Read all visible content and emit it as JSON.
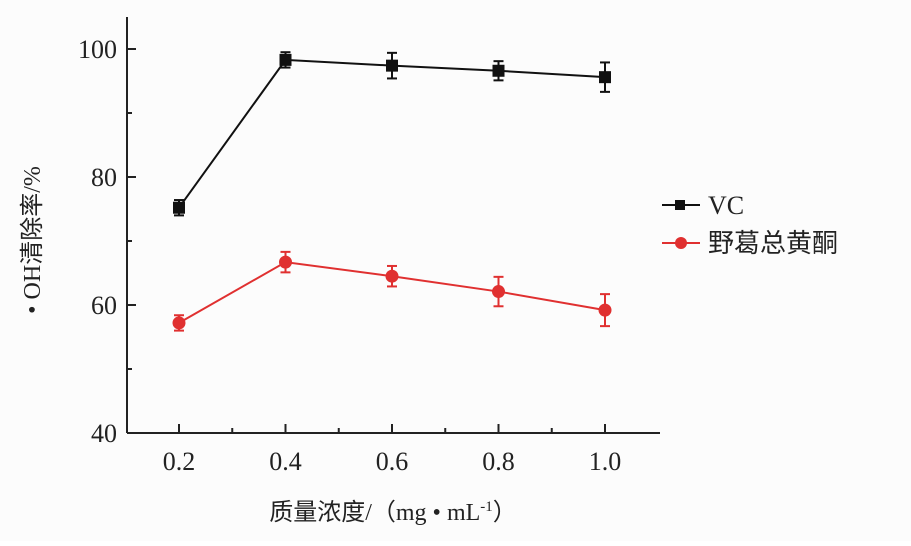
{
  "chart_data": {
    "type": "line",
    "title": "",
    "xlabel": "质量浓度/（mg·mL⁻¹）",
    "xlabel_base": "质量浓度/（mg • mL",
    "xlabel_sup": "-1",
    "xlabel_end": "）",
    "ylabel": "• OH清除率/%",
    "x": [
      0.2,
      0.4,
      0.6,
      0.8,
      1.0
    ],
    "x_tick_labels": [
      "0.2",
      "0.4",
      "0.6",
      "0.8",
      "1.0"
    ],
    "y_tick_values": [
      40,
      60,
      80,
      100
    ],
    "y_tick_labels": [
      "40",
      "60",
      "80",
      "100"
    ],
    "xlim": [
      0.1,
      1.1
    ],
    "ylim": [
      40,
      105
    ],
    "grid": false,
    "legend_position": "right",
    "series": [
      {
        "name": "VC",
        "color": "#111111",
        "marker": "square",
        "values": [
          75.2,
          98.3,
          97.4,
          96.6,
          95.6
        ],
        "errors": [
          1.2,
          1.2,
          2.0,
          1.5,
          2.3
        ]
      },
      {
        "name": "野葛总黄酮",
        "color": "#e03030",
        "marker": "circle",
        "values": [
          57.2,
          66.7,
          64.5,
          62.1,
          59.2
        ],
        "errors": [
          1.2,
          1.6,
          1.6,
          2.3,
          2.5
        ]
      }
    ]
  }
}
